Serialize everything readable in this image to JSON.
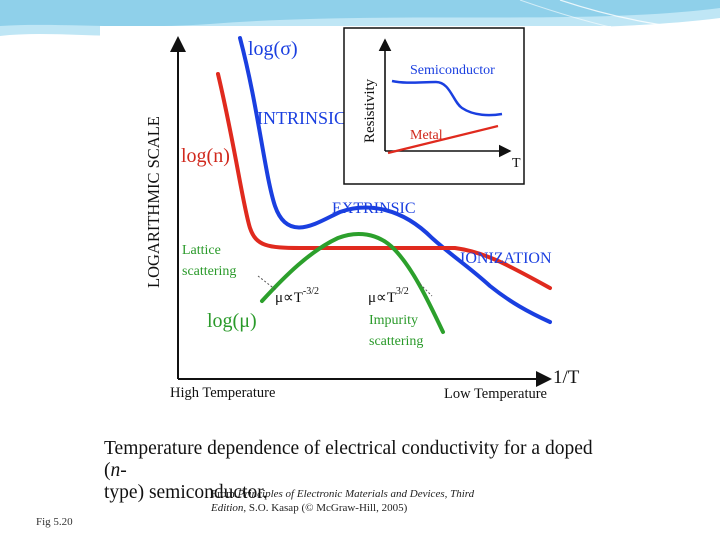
{
  "colors": {
    "conductivity": "#1a3fe0",
    "carrier": "#e02a1e",
    "mobility": "#2ca02c",
    "text_blue": "#1a3fe0",
    "text_red": "#d0281c",
    "text_green": "#2a9a2a",
    "band": "#7fc9e8"
  },
  "diagram": {
    "y_axis_label": "LOGARITHMIC SCALE",
    "x_axis_label": "1/T",
    "x_left_label": "High Temperature",
    "x_right_label": "Low Temperature",
    "curve_labels": {
      "log_sigma": "log(σ)",
      "log_n": "log(n)",
      "log_mu": "log(μ)"
    },
    "region_labels": {
      "intrinsic": "INTRINSIC",
      "extrinsic": "EXTRINSIC",
      "ionization": "IONIZATION"
    },
    "lattice_label": [
      "Lattice",
      "scattering"
    ],
    "impurity_label": [
      "Impurity",
      "scattering"
    ],
    "mu_lattice": {
      "base": "μ∝T",
      "exp": "-3/2"
    },
    "mu_impurity": {
      "base": "μ∝T",
      "exp": "3/2"
    }
  },
  "inset": {
    "y_label": "Resistivity",
    "x_label": "T",
    "semiconductor_label": "Semiconductor",
    "metal_label": "Metal"
  },
  "caption": {
    "line1": "Temperature dependence of electrical conductivity for a doped (",
    "italic_n": "n",
    "line1_end": "-",
    "line2": "type) semiconductor."
  },
  "footer": {
    "fig_label": "Fig 5.20",
    "source_prefix": "From ",
    "source_title": "Principles of Electronic Materials and Devices, Third Edition",
    "source_suffix": ", S.O. Kasap (© McGraw-Hill, 2005)"
  }
}
